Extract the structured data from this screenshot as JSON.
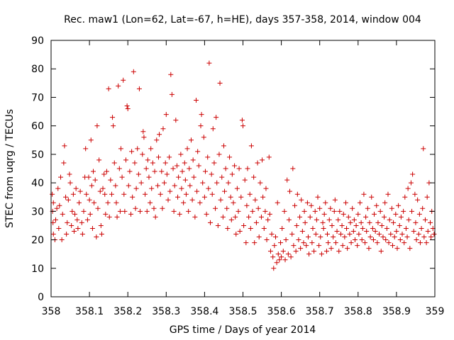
{
  "chart_data": {
    "type": "scatter",
    "title": "Rec. maw1 (Lon=62, Lat=-67, h=HE), days 357-358, 2014, window 004",
    "xlabel": "GPS time / Days of year 2014",
    "ylabel": "STEC from uqrg / TECUs",
    "xlim": [
      358,
      359
    ],
    "ylim": [
      0,
      90
    ],
    "xticks": [
      358,
      358.1,
      358.2,
      358.3,
      358.4,
      358.5,
      358.6,
      358.7,
      358.8,
      358.9,
      359
    ],
    "xtick_labels": [
      "358",
      "358.1",
      "358.2",
      "358.3",
      "358.4",
      "358.5",
      "358.6",
      "358.7",
      "358.8",
      "358.9",
      "359"
    ],
    "yticks": [
      0,
      10,
      20,
      30,
      40,
      50,
      60,
      70,
      80,
      90
    ],
    "ytick_labels": [
      "0",
      "10",
      "20",
      "30",
      "40",
      "50",
      "60",
      "70",
      "80",
      "90"
    ],
    "grid": false,
    "marker": "+",
    "color": "#cc0000",
    "points": [
      [
        358.003,
        36
      ],
      [
        358.004,
        30
      ],
      [
        358.005,
        26
      ],
      [
        358.006,
        22
      ],
      [
        358.006,
        33
      ],
      [
        358.01,
        20
      ],
      [
        358.012,
        27
      ],
      [
        358.015,
        31
      ],
      [
        358.018,
        38
      ],
      [
        358.02,
        24
      ],
      [
        358.022,
        32
      ],
      [
        358.025,
        42
      ],
      [
        358.028,
        20
      ],
      [
        358.03,
        29
      ],
      [
        358.033,
        47
      ],
      [
        358.035,
        53
      ],
      [
        358.038,
        35
      ],
      [
        358.04,
        22
      ],
      [
        358.042,
        26
      ],
      [
        358.045,
        34
      ],
      [
        358.048,
        43
      ],
      [
        358.05,
        40
      ],
      [
        358.053,
        25
      ],
      [
        358.055,
        30
      ],
      [
        358.058,
        36
      ],
      [
        358.06,
        23
      ],
      [
        358.062,
        29
      ],
      [
        358.065,
        38
      ],
      [
        358.068,
        27
      ],
      [
        358.07,
        24
      ],
      [
        358.073,
        33
      ],
      [
        358.076,
        37
      ],
      [
        358.08,
        26
      ],
      [
        358.082,
        22
      ],
      [
        358.085,
        30
      ],
      [
        358.088,
        42
      ],
      [
        358.09,
        52
      ],
      [
        358.092,
        36
      ],
      [
        358.095,
        27
      ],
      [
        358.098,
        42
      ],
      [
        358.1,
        34
      ],
      [
        358.102,
        29
      ],
      [
        358.104,
        55
      ],
      [
        358.106,
        39
      ],
      [
        358.108,
        24
      ],
      [
        358.11,
        44
      ],
      [
        358.112,
        33
      ],
      [
        358.115,
        41
      ],
      [
        358.118,
        21
      ],
      [
        358.12,
        60
      ],
      [
        358.122,
        31
      ],
      [
        358.125,
        48
      ],
      [
        358.128,
        37
      ],
      [
        358.13,
        25
      ],
      [
        358.132,
        22
      ],
      [
        358.135,
        38
      ],
      [
        358.138,
        43
      ],
      [
        358.14,
        36
      ],
      [
        358.142,
        29
      ],
      [
        358.145,
        44
      ],
      [
        358.148,
        33
      ],
      [
        358.15,
        73
      ],
      [
        358.152,
        28
      ],
      [
        358.155,
        41
      ],
      [
        358.158,
        36
      ],
      [
        358.16,
        63
      ],
      [
        358.162,
        60
      ],
      [
        358.165,
        47
      ],
      [
        358.168,
        39
      ],
      [
        358.17,
        33
      ],
      [
        358.172,
        28
      ],
      [
        358.175,
        74
      ],
      [
        358.178,
        45
      ],
      [
        358.18,
        30
      ],
      [
        358.182,
        52
      ],
      [
        358.185,
        42
      ],
      [
        358.188,
        76
      ],
      [
        358.19,
        36
      ],
      [
        358.192,
        30
      ],
      [
        358.195,
        48
      ],
      [
        358.198,
        67
      ],
      [
        358.2,
        66
      ],
      [
        358.202,
        39
      ],
      [
        358.205,
        44
      ],
      [
        358.208,
        29
      ],
      [
        358.21,
        51
      ],
      [
        358.212,
        35
      ],
      [
        358.215,
        79
      ],
      [
        358.218,
        47
      ],
      [
        358.22,
        31
      ],
      [
        358.222,
        38
      ],
      [
        358.225,
        52
      ],
      [
        358.228,
        43
      ],
      [
        358.23,
        73
      ],
      [
        358.232,
        30
      ],
      [
        358.235,
        40
      ],
      [
        358.238,
        50
      ],
      [
        358.24,
        58
      ],
      [
        358.242,
        56
      ],
      [
        358.245,
        36
      ],
      [
        358.248,
        45
      ],
      [
        358.25,
        30
      ],
      [
        358.252,
        48
      ],
      [
        358.255,
        42
      ],
      [
        358.258,
        33
      ],
      [
        358.26,
        52
      ],
      [
        358.262,
        38
      ],
      [
        358.265,
        47
      ],
      [
        358.268,
        31
      ],
      [
        358.27,
        44
      ],
      [
        358.272,
        28
      ],
      [
        358.275,
        55
      ],
      [
        358.278,
        39
      ],
      [
        358.28,
        49
      ],
      [
        358.282,
        57
      ],
      [
        358.285,
        36
      ],
      [
        358.288,
        44
      ],
      [
        358.29,
        31
      ],
      [
        358.292,
        59
      ],
      [
        358.295,
        40
      ],
      [
        358.298,
        47
      ],
      [
        358.3,
        64
      ],
      [
        358.302,
        43
      ],
      [
        358.305,
        34
      ],
      [
        358.308,
        49
      ],
      [
        358.31,
        37
      ],
      [
        358.312,
        78
      ],
      [
        358.315,
        71
      ],
      [
        358.318,
        45
      ],
      [
        358.32,
        30
      ],
      [
        358.322,
        39
      ],
      [
        358.325,
        62
      ],
      [
        358.328,
        46
      ],
      [
        358.33,
        35
      ],
      [
        358.332,
        42
      ],
      [
        358.335,
        29
      ],
      [
        358.338,
        50
      ],
      [
        358.34,
        38
      ],
      [
        358.342,
        44
      ],
      [
        358.345,
        33
      ],
      [
        358.348,
        47
      ],
      [
        358.35,
        41
      ],
      [
        358.352,
        36
      ],
      [
        358.355,
        52
      ],
      [
        358.358,
        30
      ],
      [
        358.36,
        45
      ],
      [
        358.362,
        39
      ],
      [
        358.365,
        55
      ],
      [
        358.368,
        34
      ],
      [
        358.37,
        48
      ],
      [
        358.372,
        42
      ],
      [
        358.375,
        28
      ],
      [
        358.378,
        69
      ],
      [
        358.38,
        37
      ],
      [
        358.382,
        51
      ],
      [
        358.385,
        46
      ],
      [
        358.388,
        33
      ],
      [
        358.39,
        60
      ],
      [
        358.392,
        64
      ],
      [
        358.395,
        40
      ],
      [
        358.398,
        56
      ],
      [
        358.4,
        35
      ],
      [
        358.402,
        44
      ],
      [
        358.405,
        29
      ],
      [
        358.408,
        49
      ],
      [
        358.41,
        38
      ],
      [
        358.412,
        82
      ],
      [
        358.415,
        26
      ],
      [
        358.418,
        43
      ],
      [
        358.42,
        36
      ],
      [
        358.422,
        59
      ],
      [
        358.425,
        47
      ],
      [
        358.428,
        31
      ],
      [
        358.43,
        63
      ],
      [
        358.432,
        40
      ],
      [
        358.435,
        25
      ],
      [
        358.438,
        50
      ],
      [
        358.44,
        75
      ],
      [
        358.442,
        34
      ],
      [
        358.445,
        42
      ],
      [
        358.448,
        28
      ],
      [
        358.45,
        53
      ],
      [
        358.452,
        37
      ],
      [
        358.455,
        45
      ],
      [
        358.458,
        31
      ],
      [
        358.46,
        24
      ],
      [
        358.462,
        40
      ],
      [
        358.465,
        49
      ],
      [
        358.468,
        35
      ],
      [
        358.47,
        27
      ],
      [
        358.472,
        43
      ],
      [
        358.475,
        33
      ],
      [
        358.478,
        46
      ],
      [
        358.48,
        28
      ],
      [
        358.482,
        22
      ],
      [
        358.485,
        38
      ],
      [
        358.488,
        30
      ],
      [
        358.49,
        45
      ],
      [
        358.492,
        23
      ],
      [
        358.495,
        35
      ],
      [
        358.498,
        62
      ],
      [
        358.5,
        60
      ],
      [
        358.502,
        25
      ],
      [
        358.505,
        41
      ],
      [
        358.508,
        19
      ],
      [
        358.51,
        32
      ],
      [
        358.512,
        45
      ],
      [
        358.515,
        28
      ],
      [
        358.518,
        36
      ],
      [
        358.52,
        24
      ],
      [
        358.522,
        53
      ],
      [
        358.525,
        30
      ],
      [
        358.528,
        42
      ],
      [
        358.53,
        19
      ],
      [
        358.532,
        34
      ],
      [
        358.535,
        26
      ],
      [
        358.538,
        47
      ],
      [
        358.54,
        31
      ],
      [
        358.542,
        21
      ],
      [
        358.545,
        40
      ],
      [
        358.548,
        28
      ],
      [
        358.55,
        48
      ],
      [
        358.552,
        35
      ],
      [
        358.555,
        24
      ],
      [
        358.558,
        30
      ],
      [
        358.56,
        38
      ],
      [
        358.562,
        20
      ],
      [
        358.565,
        27
      ],
      [
        358.568,
        49
      ],
      [
        358.57,
        29
      ],
      [
        358.572,
        16
      ],
      [
        358.575,
        22
      ],
      [
        358.578,
        14
      ],
      [
        358.58,
        10
      ],
      [
        358.582,
        18
      ],
      [
        358.585,
        21
      ],
      [
        358.588,
        12
      ],
      [
        358.59,
        33
      ],
      [
        358.592,
        15
      ],
      [
        358.595,
        13
      ],
      [
        358.598,
        19
      ],
      [
        358.6,
        14
      ],
      [
        358.602,
        24
      ],
      [
        358.605,
        16
      ],
      [
        358.608,
        30
      ],
      [
        358.61,
        13
      ],
      [
        358.612,
        20
      ],
      [
        358.615,
        41
      ],
      [
        358.618,
        15
      ],
      [
        358.62,
        27
      ],
      [
        358.622,
        37
      ],
      [
        358.625,
        14
      ],
      [
        358.628,
        22
      ],
      [
        358.63,
        45
      ],
      [
        358.632,
        18
      ],
      [
        358.635,
        32
      ],
      [
        358.638,
        16
      ],
      [
        358.64,
        25
      ],
      [
        358.642,
        36
      ],
      [
        358.645,
        20
      ],
      [
        358.648,
        28
      ],
      [
        358.65,
        17
      ],
      [
        358.652,
        34
      ],
      [
        358.655,
        23
      ],
      [
        358.658,
        19
      ],
      [
        358.66,
        30
      ],
      [
        358.662,
        26
      ],
      [
        358.665,
        18
      ],
      [
        358.668,
        33
      ],
      [
        358.67,
        21
      ],
      [
        358.672,
        15
      ],
      [
        358.675,
        28
      ],
      [
        358.678,
        32
      ],
      [
        358.68,
        19
      ],
      [
        358.682,
        24
      ],
      [
        358.685,
        16
      ],
      [
        358.688,
        30
      ],
      [
        358.69,
        22
      ],
      [
        358.692,
        27
      ],
      [
        358.695,
        35
      ],
      [
        358.698,
        18
      ],
      [
        358.7,
        31
      ],
      [
        358.702,
        21
      ],
      [
        358.705,
        15
      ],
      [
        358.708,
        26
      ],
      [
        358.71,
        24
      ],
      [
        358.712,
        29
      ],
      [
        358.715,
        33
      ],
      [
        358.718,
        16
      ],
      [
        358.72,
        22
      ],
      [
        358.722,
        19
      ],
      [
        358.725,
        27
      ],
      [
        358.728,
        31
      ],
      [
        358.73,
        17
      ],
      [
        358.732,
        25
      ],
      [
        358.735,
        21
      ],
      [
        358.738,
        30
      ],
      [
        358.74,
        34
      ],
      [
        358.742,
        19
      ],
      [
        358.745,
        23
      ],
      [
        358.748,
        27
      ],
      [
        358.75,
        16
      ],
      [
        358.752,
        30
      ],
      [
        358.755,
        22
      ],
      [
        358.758,
        25
      ],
      [
        358.76,
        18
      ],
      [
        358.762,
        29
      ],
      [
        358.765,
        21
      ],
      [
        358.768,
        33
      ],
      [
        358.77,
        24
      ],
      [
        358.772,
        17
      ],
      [
        358.775,
        28
      ],
      [
        358.778,
        22
      ],
      [
        358.78,
        26
      ],
      [
        358.782,
        19
      ],
      [
        358.785,
        31
      ],
      [
        358.788,
        23
      ],
      [
        358.79,
        27
      ],
      [
        358.792,
        20
      ],
      [
        358.795,
        25
      ],
      [
        358.798,
        18
      ],
      [
        358.8,
        29
      ],
      [
        358.802,
        22
      ],
      [
        358.805,
        33
      ],
      [
        358.808,
        26
      ],
      [
        358.81,
        20
      ],
      [
        358.812,
        24
      ],
      [
        358.815,
        36
      ],
      [
        358.818,
        19
      ],
      [
        358.82,
        28
      ],
      [
        358.822,
        23
      ],
      [
        358.825,
        31
      ],
      [
        358.828,
        17
      ],
      [
        358.83,
        26
      ],
      [
        358.832,
        21
      ],
      [
        358.835,
        35
      ],
      [
        358.838,
        24
      ],
      [
        358.84,
        20
      ],
      [
        358.842,
        29
      ],
      [
        358.845,
        23
      ],
      [
        358.848,
        32
      ],
      [
        358.85,
        19
      ],
      [
        358.852,
        26
      ],
      [
        358.855,
        22
      ],
      [
        358.858,
        30
      ],
      [
        358.86,
        16
      ],
      [
        358.862,
        25
      ],
      [
        358.865,
        21
      ],
      [
        358.868,
        28
      ],
      [
        358.87,
        33
      ],
      [
        358.872,
        20
      ],
      [
        358.875,
        24
      ],
      [
        358.878,
        36
      ],
      [
        358.88,
        19
      ],
      [
        358.882,
        27
      ],
      [
        358.885,
        22
      ],
      [
        358.888,
        31
      ],
      [
        358.89,
        18
      ],
      [
        358.892,
        26
      ],
      [
        358.895,
        21
      ],
      [
        358.898,
        29
      ],
      [
        358.9,
        23
      ],
      [
        358.902,
        17
      ],
      [
        358.905,
        32
      ],
      [
        358.908,
        25
      ],
      [
        358.91,
        20
      ],
      [
        358.912,
        28
      ],
      [
        358.915,
        22
      ],
      [
        358.918,
        30
      ],
      [
        358.92,
        19
      ],
      [
        358.922,
        35
      ],
      [
        358.925,
        24
      ],
      [
        358.928,
        21
      ],
      [
        358.93,
        38
      ],
      [
        358.932,
        27
      ],
      [
        358.935,
        17
      ],
      [
        358.938,
        40
      ],
      [
        358.94,
        30
      ],
      [
        358.942,
        43
      ],
      [
        358.945,
        23
      ],
      [
        358.948,
        36
      ],
      [
        358.95,
        26
      ],
      [
        358.952,
        20
      ],
      [
        358.955,
        34
      ],
      [
        358.958,
        22
      ],
      [
        358.96,
        29
      ],
      [
        358.962,
        19
      ],
      [
        358.965,
        24
      ],
      [
        358.968,
        31
      ],
      [
        358.97,
        52
      ],
      [
        358.972,
        21
      ],
      [
        358.975,
        27
      ],
      [
        358.978,
        19
      ],
      [
        358.98,
        35
      ],
      [
        358.982,
        23
      ],
      [
        358.985,
        40
      ],
      [
        358.988,
        26
      ],
      [
        358.99,
        21
      ],
      [
        358.992,
        30
      ],
      [
        358.995,
        24
      ],
      [
        358.998,
        22
      ]
    ]
  }
}
